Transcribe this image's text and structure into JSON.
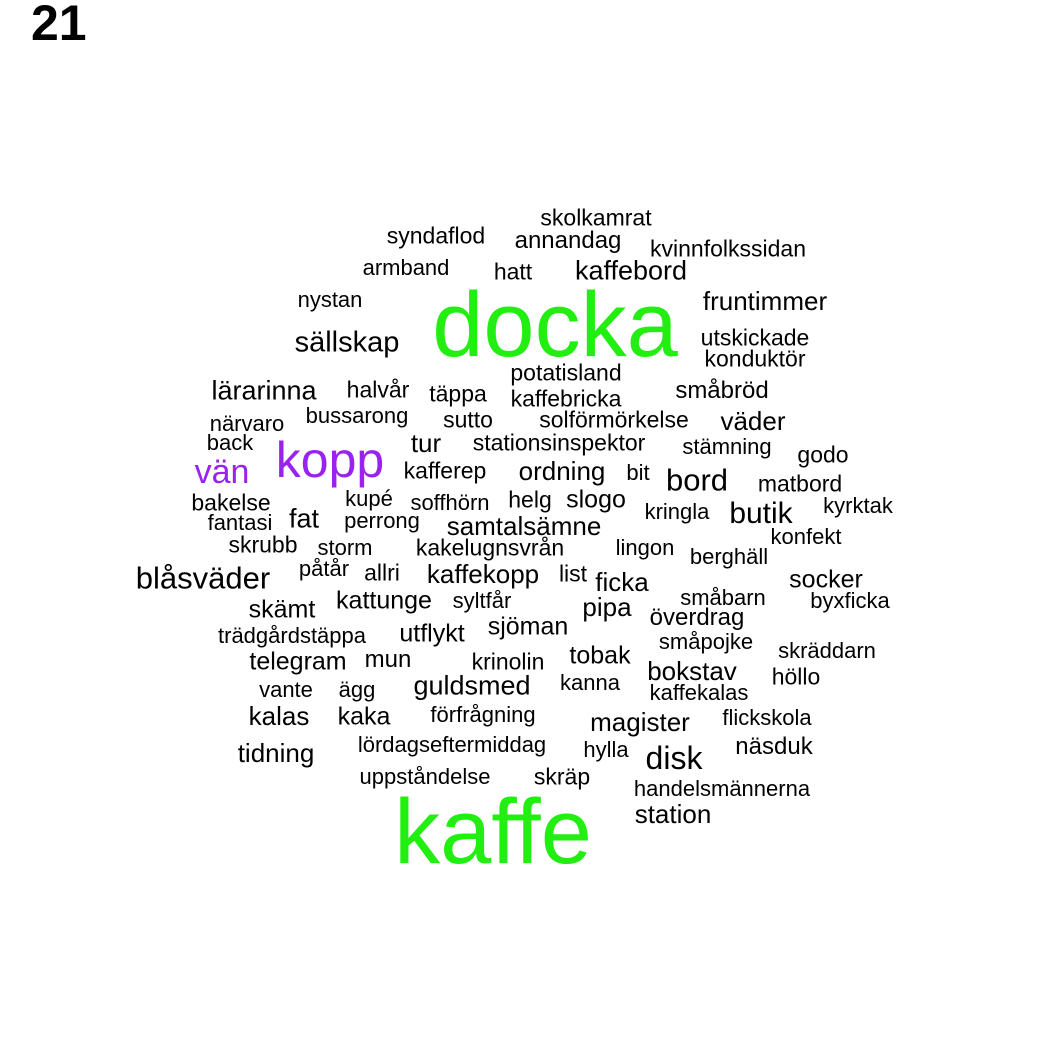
{
  "panel_number": "21",
  "colors": {
    "large": "#22ee11",
    "medium": "#9922ee",
    "default": "#000000"
  },
  "words": [
    {
      "text": "docka",
      "tier": "large"
    },
    {
      "text": "kaffe",
      "tier": "large"
    },
    {
      "text": "kopp",
      "tier": "medium"
    },
    {
      "text": "vän",
      "tier": "medium"
    },
    {
      "text": "skolkamrat"
    },
    {
      "text": "syndaflod"
    },
    {
      "text": "annandag"
    },
    {
      "text": "kvinnfolkssidan"
    },
    {
      "text": "armband"
    },
    {
      "text": "hatt"
    },
    {
      "text": "kaffebord"
    },
    {
      "text": "nystan"
    },
    {
      "text": "fruntimmer"
    },
    {
      "text": "sällskap"
    },
    {
      "text": "utskickade"
    },
    {
      "text": "konduktör"
    },
    {
      "text": "potatisland"
    },
    {
      "text": "lärarinna"
    },
    {
      "text": "halvår"
    },
    {
      "text": "täppa"
    },
    {
      "text": "kaffebricka"
    },
    {
      "text": "småbröd"
    },
    {
      "text": "närvaro"
    },
    {
      "text": "bussarong"
    },
    {
      "text": "sutto"
    },
    {
      "text": "solförmörkelse"
    },
    {
      "text": "väder"
    },
    {
      "text": "back"
    },
    {
      "text": "tur"
    },
    {
      "text": "stationsinspektor"
    },
    {
      "text": "stämning"
    },
    {
      "text": "godo"
    },
    {
      "text": "kafferep"
    },
    {
      "text": "ordning"
    },
    {
      "text": "bit"
    },
    {
      "text": "bord"
    },
    {
      "text": "matbord"
    },
    {
      "text": "bakelse"
    },
    {
      "text": "kupé"
    },
    {
      "text": "soffhörn"
    },
    {
      "text": "helg"
    },
    {
      "text": "slogo"
    },
    {
      "text": "kyrktak"
    },
    {
      "text": "fantasi"
    },
    {
      "text": "fat"
    },
    {
      "text": "perrong"
    },
    {
      "text": "samtalsämne"
    },
    {
      "text": "kringla"
    },
    {
      "text": "butik"
    },
    {
      "text": "skrubb"
    },
    {
      "text": "storm"
    },
    {
      "text": "kakelugnsvrån"
    },
    {
      "text": "lingon"
    },
    {
      "text": "berghäll"
    },
    {
      "text": "konfekt"
    },
    {
      "text": "blåsväder"
    },
    {
      "text": "påtår"
    },
    {
      "text": "allri"
    },
    {
      "text": "kaffekopp"
    },
    {
      "text": "list"
    },
    {
      "text": "ficka"
    },
    {
      "text": "socker"
    },
    {
      "text": "skämt"
    },
    {
      "text": "kattunge"
    },
    {
      "text": "syltfår"
    },
    {
      "text": "pipa"
    },
    {
      "text": "småbarn"
    },
    {
      "text": "byxficka"
    },
    {
      "text": "överdrag"
    },
    {
      "text": "trädgårdstäppa"
    },
    {
      "text": "utflykt"
    },
    {
      "text": "sjöman"
    },
    {
      "text": "småpojke"
    },
    {
      "text": "skräddarn"
    },
    {
      "text": "telegram"
    },
    {
      "text": "mun"
    },
    {
      "text": "krinolin"
    },
    {
      "text": "tobak"
    },
    {
      "text": "bokstav"
    },
    {
      "text": "höllo"
    },
    {
      "text": "vante"
    },
    {
      "text": "ägg"
    },
    {
      "text": "guldsmed"
    },
    {
      "text": "kanna"
    },
    {
      "text": "kaffekalas"
    },
    {
      "text": "kalas"
    },
    {
      "text": "kaka"
    },
    {
      "text": "förfrågning"
    },
    {
      "text": "magister"
    },
    {
      "text": "flickskola"
    },
    {
      "text": "tidning"
    },
    {
      "text": "lördagseftermiddag"
    },
    {
      "text": "hylla"
    },
    {
      "text": "disk"
    },
    {
      "text": "näsduk"
    },
    {
      "text": "uppståndelse"
    },
    {
      "text": "skräp"
    },
    {
      "text": "handelsmännerna"
    },
    {
      "text": "station"
    }
  ]
}
